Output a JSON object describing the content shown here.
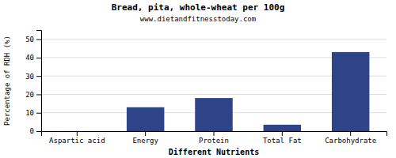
{
  "chart_data": {
    "type": "bar",
    "title": "Bread, pita, whole-wheat per 100g",
    "subtitle": "www.dietandfitnesstoday.com",
    "xlabel": "Different Nutrients",
    "ylabel": "Percentage of RDH (%)",
    "categories": [
      "Aspartic acid",
      "Energy",
      "Protein",
      "Total Fat",
      "Carbohydrate"
    ],
    "values": [
      0,
      13,
      18,
      3.5,
      43
    ],
    "color": "#2e4488",
    "ylim": [
      0,
      55
    ],
    "yticks": [
      0,
      10,
      20,
      30,
      40,
      50
    ],
    "grid": true
  }
}
